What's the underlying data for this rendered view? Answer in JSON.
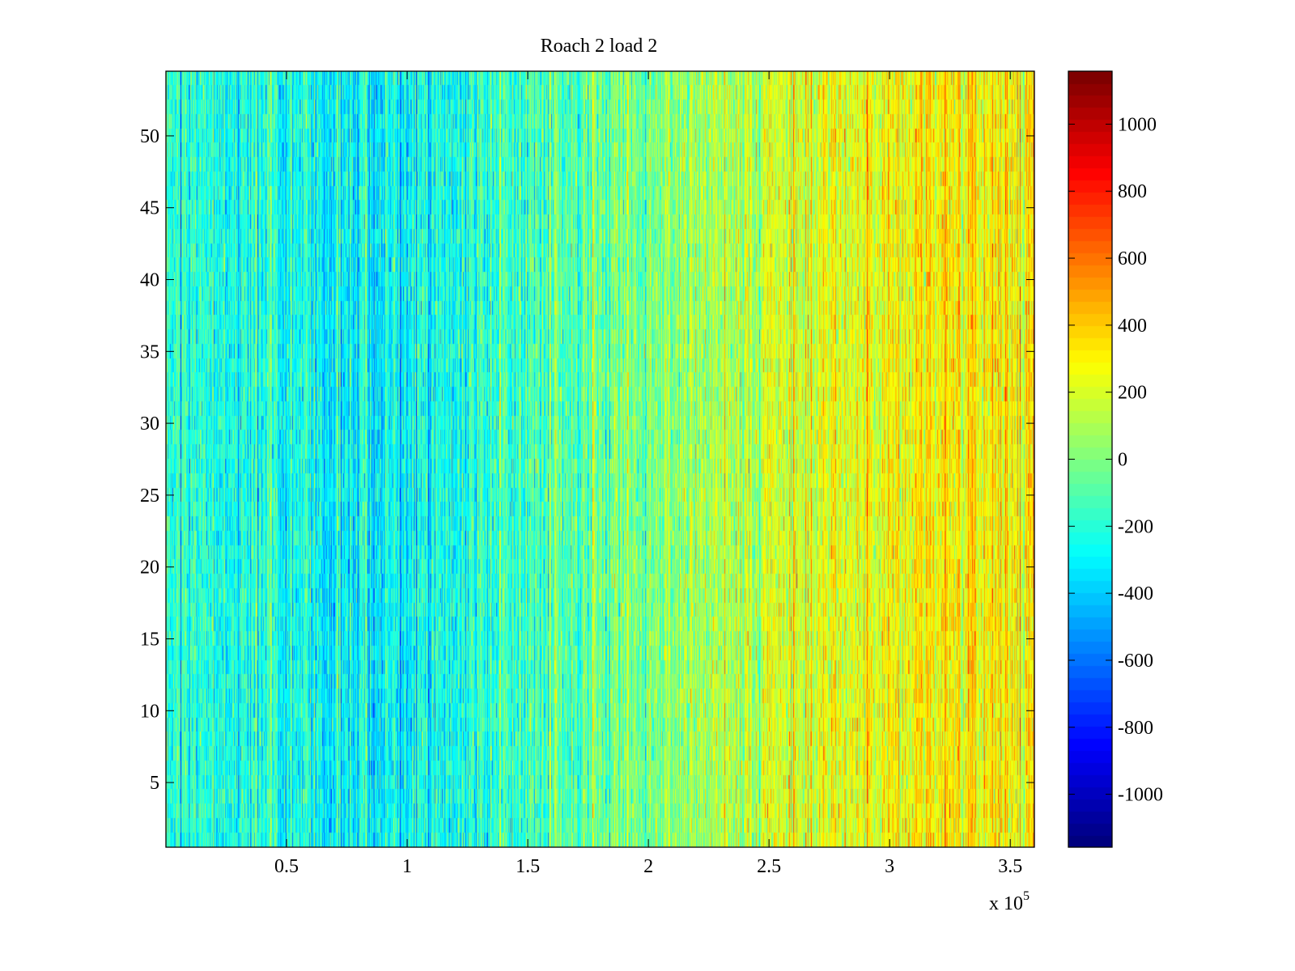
{
  "chart_data": {
    "type": "heatmap",
    "title": "Roach 2 load 2",
    "xlabel": "",
    "ylabel": "",
    "x_exponent_label": "x 10",
    "x_exponent": "5",
    "xlim": [
      0,
      360000
    ],
    "ylim": [
      0.5,
      54.5
    ],
    "rows": 54,
    "columns": 360,
    "xticks": [
      50000,
      100000,
      150000,
      200000,
      250000,
      300000,
      350000
    ],
    "xtick_labels": [
      "0.5",
      "1",
      "1.5",
      "2",
      "2.5",
      "3",
      "3.5"
    ],
    "yticks": [
      5,
      10,
      15,
      20,
      25,
      30,
      35,
      40,
      45,
      50
    ],
    "ytick_labels": [
      "5",
      "10",
      "15",
      "20",
      "25",
      "30",
      "35",
      "40",
      "45",
      "50"
    ],
    "colormap": "jet",
    "clim": [
      -1158,
      1158
    ],
    "colorbar_ticks": [
      -1000,
      -800,
      -600,
      -400,
      -200,
      0,
      200,
      400,
      600,
      800,
      1000
    ],
    "colorbar_labels": [
      "-1000",
      "-800",
      "-600",
      "-400",
      "-200",
      "0",
      "200",
      "400",
      "600",
      "800",
      "1000"
    ],
    "column_mean_profile": {
      "x": [
        0,
        50000,
        100000,
        150000,
        200000,
        250000,
        300000,
        360000
      ],
      "mean": [
        -200,
        -250,
        -300,
        -120,
        0,
        180,
        250,
        330
      ]
    },
    "noise_std": 160
  }
}
